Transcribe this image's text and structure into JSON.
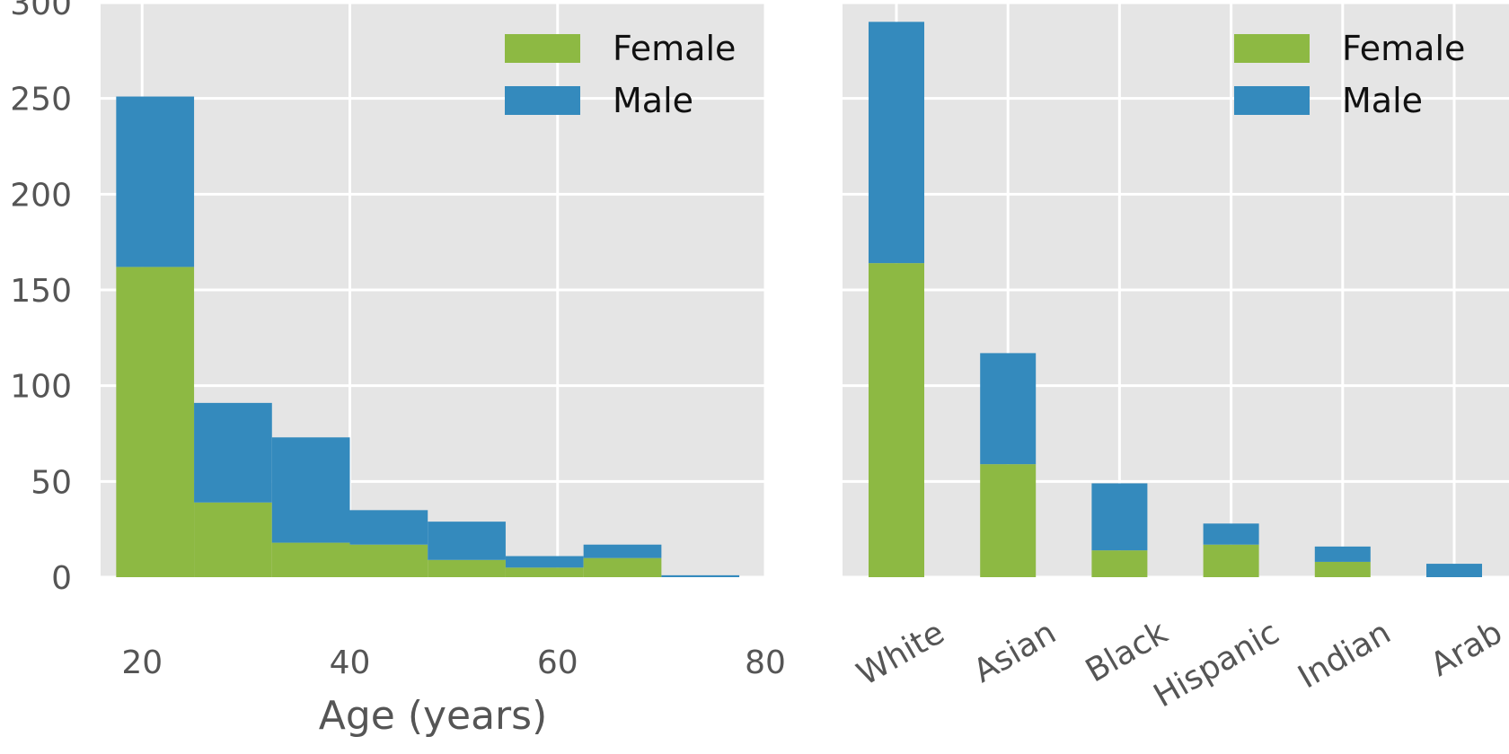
{
  "colors": {
    "female": "#8db943",
    "male": "#348abd",
    "panel_bg": "#e5e5e5",
    "grid": "#ffffff",
    "text": "#555555"
  },
  "chart_data": [
    {
      "type": "bar",
      "stacked": true,
      "histogram": true,
      "title": "",
      "xlabel": "Age (years)",
      "ylabel": "",
      "xlim": [
        16,
        80
      ],
      "ylim": [
        0,
        300
      ],
      "xticks": [
        "20",
        "40",
        "60",
        "80"
      ],
      "yticks": [
        "0",
        "50",
        "100",
        "150",
        "200",
        "250",
        "300"
      ],
      "grid": true,
      "legend_position": "top-right",
      "bin_edges": [
        17.5,
        25,
        32.5,
        40,
        47.5,
        55,
        62.5,
        70,
        77.5
      ],
      "series": [
        {
          "name": "Female",
          "values": [
            162,
            39,
            18,
            17,
            9,
            5,
            10,
            0
          ]
        },
        {
          "name": "Male",
          "values": [
            89,
            52,
            55,
            18,
            20,
            6,
            7,
            1
          ]
        }
      ]
    },
    {
      "type": "bar",
      "stacked": true,
      "title": "",
      "xlabel": "",
      "ylabel": "",
      "ylim": [
        0,
        300
      ],
      "grid": true,
      "legend_position": "top-right",
      "categories": [
        "White",
        "Asian",
        "Black",
        "Hispanic",
        "Indian",
        "Arab"
      ],
      "series": [
        {
          "name": "Female",
          "values": [
            164,
            59,
            14,
            17,
            8,
            0
          ]
        },
        {
          "name": "Male",
          "values": [
            126,
            58,
            35,
            11,
            8,
            7
          ]
        }
      ]
    }
  ]
}
